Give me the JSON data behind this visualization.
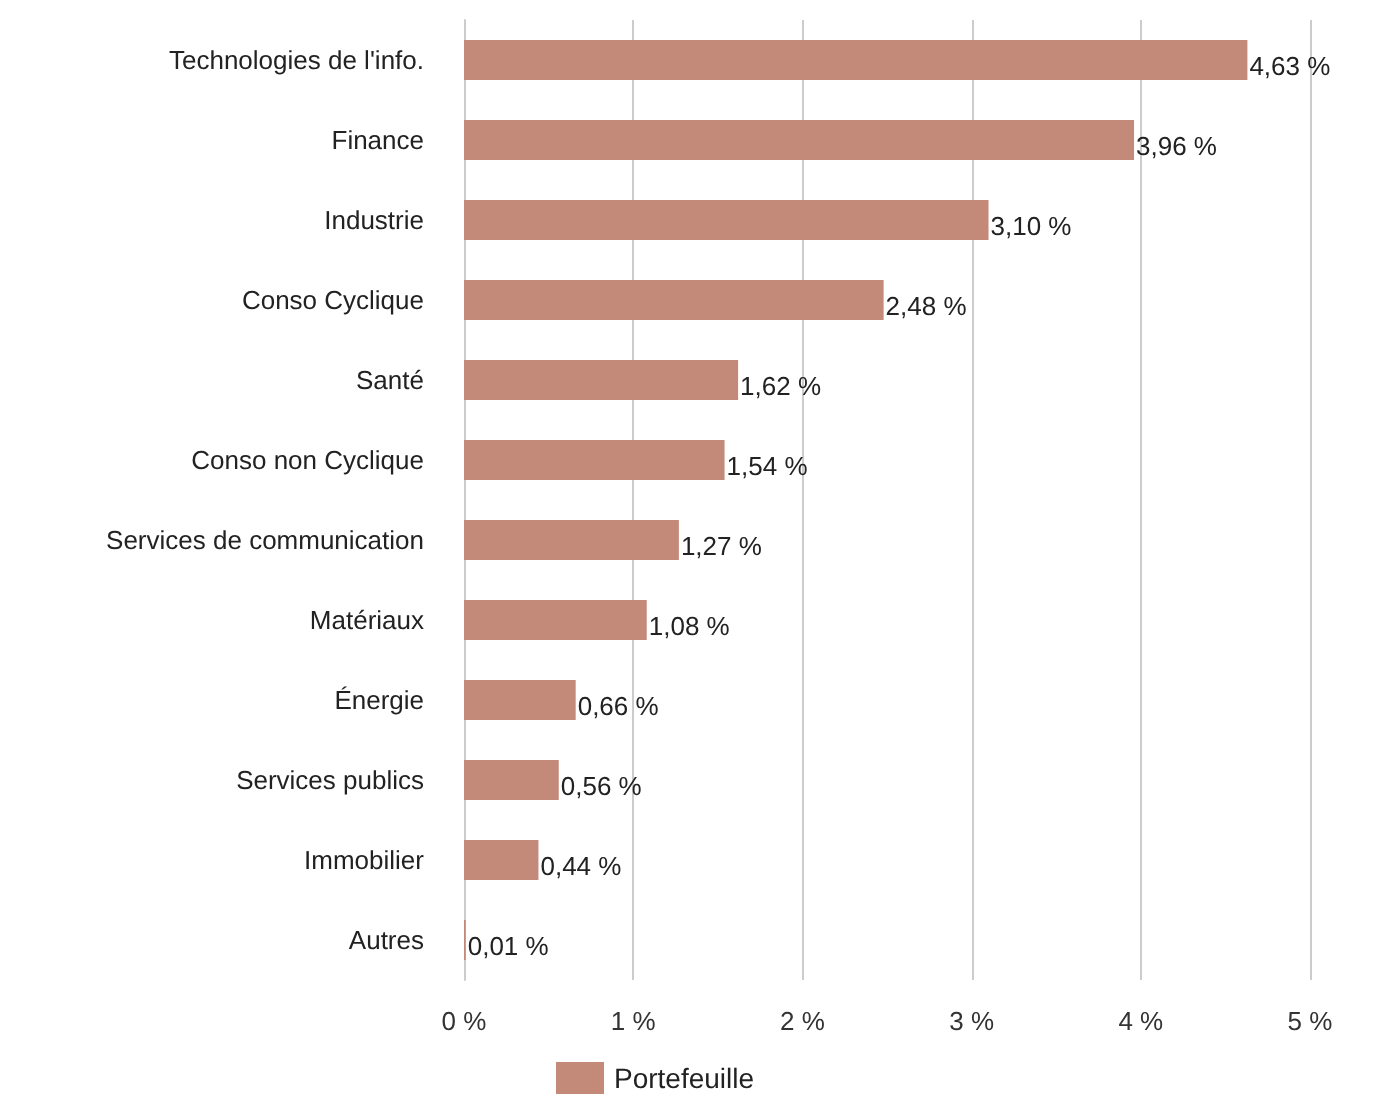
{
  "chart_data": {
    "type": "bar",
    "orientation": "horizontal",
    "categories": [
      "Technologies de l'info.",
      "Finance",
      "Industrie",
      "Conso Cyclique",
      "Santé",
      "Conso non Cyclique",
      "Services de communication",
      "Matériaux",
      "Énergie",
      "Services publics",
      "Immobilier",
      "Autres"
    ],
    "series": [
      {
        "name": "Portefeuille",
        "color": "#c38a7a",
        "values": [
          4.63,
          3.96,
          3.1,
          2.48,
          1.62,
          1.54,
          1.27,
          1.08,
          0.66,
          0.56,
          0.44,
          0.01
        ],
        "value_labels": [
          "4,63 %",
          "3,96 %",
          "3,10 %",
          "2,48 %",
          "1,62 %",
          "1,54 %",
          "1,27 %",
          "1,08 %",
          "0,66 %",
          "0,56 %",
          "0,44 %",
          "0,01 %"
        ]
      }
    ],
    "xlim": [
      0,
      5
    ],
    "xticks": [
      {
        "value": 0,
        "label": "0 %"
      },
      {
        "value": 1,
        "label": "1 %"
      },
      {
        "value": 2,
        "label": "2 %"
      },
      {
        "value": 3,
        "label": "3 %"
      },
      {
        "value": 4,
        "label": "4 %"
      },
      {
        "value": 5,
        "label": "5 %"
      }
    ],
    "grid": "x",
    "legend": "bottom"
  }
}
